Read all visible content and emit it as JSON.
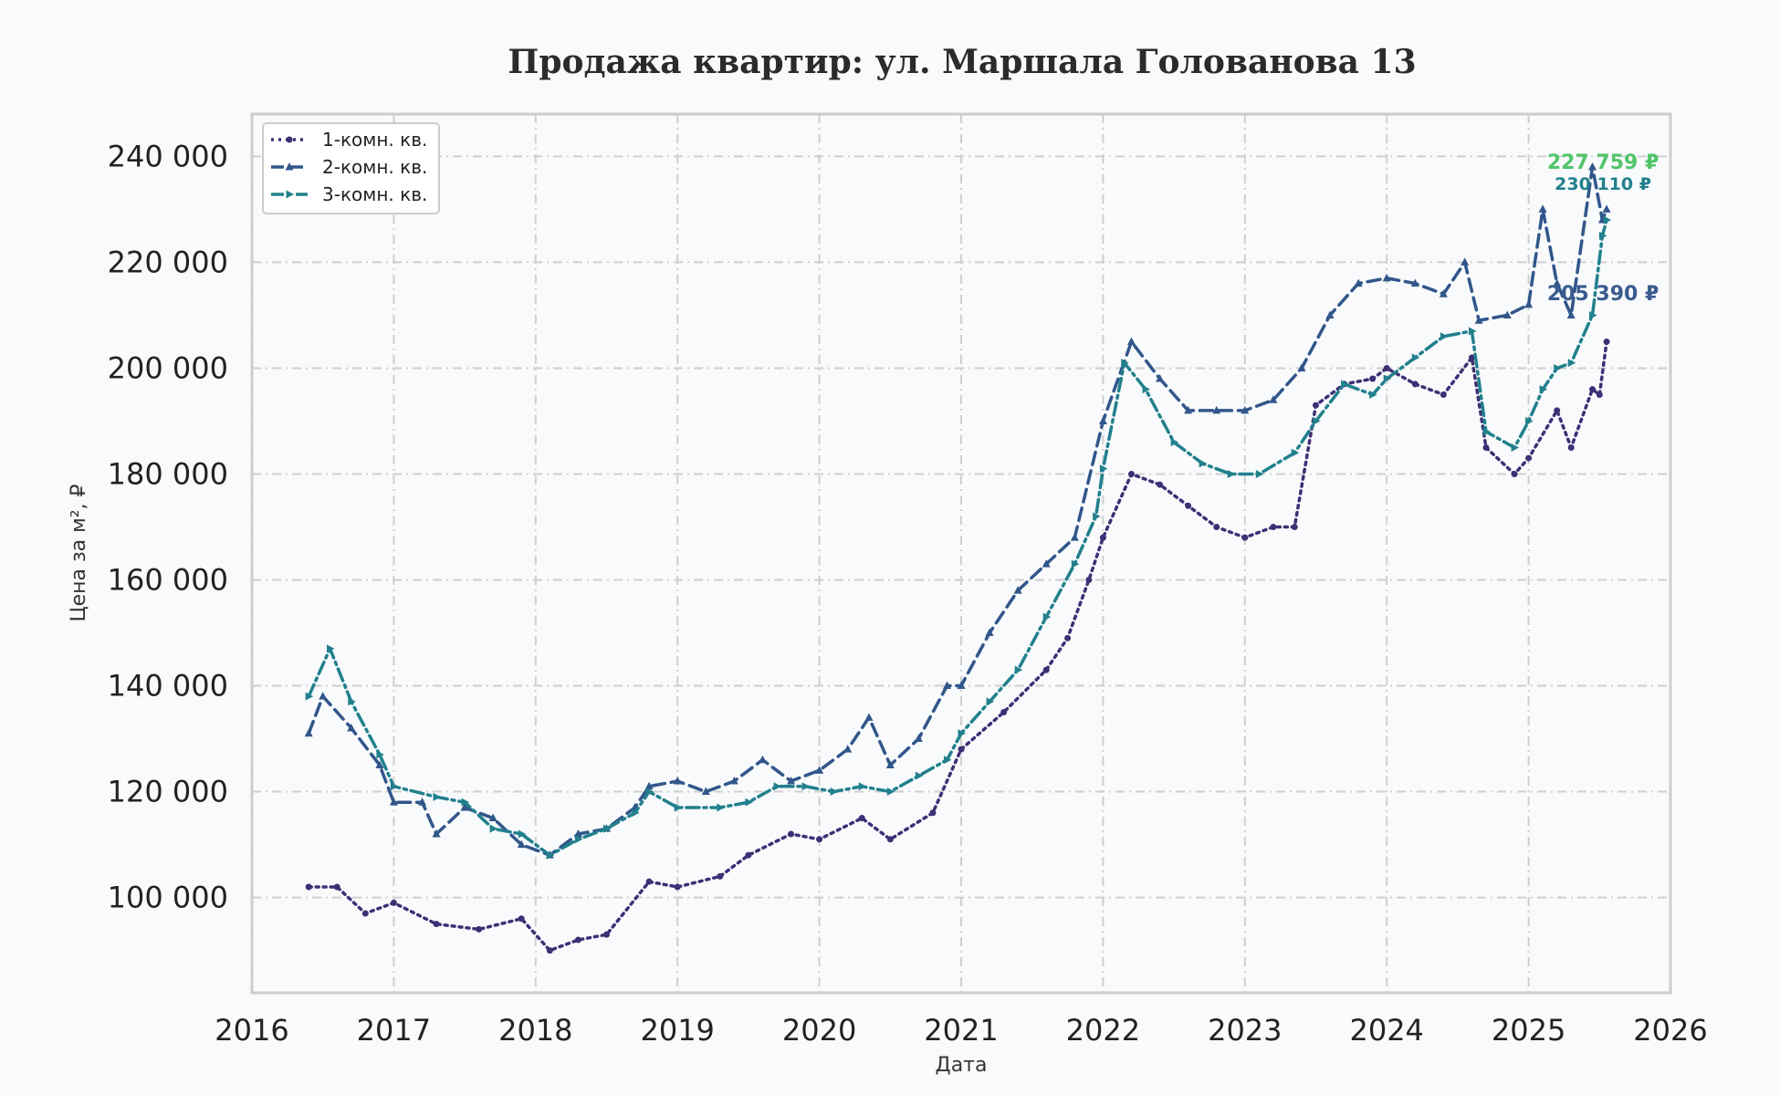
{
  "chart_data": {
    "type": "line",
    "title": "Продажа квартир: ул. Маршала Голованова 13",
    "xlabel": "Дата",
    "ylabel": "Цена за м², ₽",
    "xlim": [
      2016,
      2026
    ],
    "ylim": [
      82000,
      248000
    ],
    "x_ticks": [
      "2016",
      "2017",
      "2018",
      "2019",
      "2020",
      "2021",
      "2022",
      "2023",
      "2024",
      "2025",
      "2026"
    ],
    "y_ticks": [
      "100 000",
      "120 000",
      "140 000",
      "160 000",
      "180 000",
      "200 000",
      "220 000",
      "240 000"
    ],
    "grid": true,
    "legend_position": "top-left",
    "series": [
      {
        "name": "1-комн. кв.",
        "color": "#3e2f75",
        "marker": "circle",
        "dash": "dotted",
        "end_label": "205 390 ₽",
        "end_label_value": 212800,
        "x": [
          2016.4,
          2016.6,
          2016.8,
          2017.0,
          2017.3,
          2017.6,
          2017.9,
          2018.1,
          2018.3,
          2018.5,
          2018.8,
          2019.0,
          2019.3,
          2019.5,
          2019.8,
          2020.0,
          2020.3,
          2020.5,
          2020.8,
          2021.0,
          2021.3,
          2021.6,
          2021.75,
          2021.9,
          2022.0,
          2022.2,
          2022.4,
          2022.6,
          2022.8,
          2023.0,
          2023.2,
          2023.35,
          2023.5,
          2023.7,
          2023.9,
          2024.0,
          2024.2,
          2024.4,
          2024.6,
          2024.7,
          2024.9,
          2025.0,
          2025.2,
          2025.3,
          2025.45,
          2025.5,
          2025.55
        ],
        "y": [
          102000,
          102000,
          97000,
          99000,
          95000,
          94000,
          96000,
          90000,
          92000,
          93000,
          103000,
          102000,
          104000,
          108000,
          112000,
          111000,
          115000,
          111000,
          116000,
          128000,
          135000,
          143000,
          149000,
          160000,
          168000,
          180000,
          178000,
          174000,
          170000,
          168000,
          170000,
          170000,
          193000,
          197000,
          198000,
          200000,
          197000,
          195000,
          202000,
          185000,
          180000,
          183000,
          192000,
          185000,
          196000,
          195000,
          205000
        ]
      },
      {
        "name": "2-комн. кв.",
        "color": "#31568a",
        "marker": "triangle",
        "dash": "dashed",
        "end_label": "230 110 ₽",
        "end_label_value": 233700,
        "x": [
          2016.4,
          2016.5,
          2016.7,
          2016.9,
          2017.0,
          2017.2,
          2017.3,
          2017.5,
          2017.7,
          2017.9,
          2018.1,
          2018.3,
          2018.5,
          2018.7,
          2018.8,
          2019.0,
          2019.2,
          2019.4,
          2019.6,
          2019.8,
          2020.0,
          2020.2,
          2020.35,
          2020.5,
          2020.7,
          2020.9,
          2021.0,
          2021.2,
          2021.4,
          2021.6,
          2021.8,
          2022.0,
          2022.2,
          2022.4,
          2022.6,
          2022.8,
          2023.0,
          2023.2,
          2023.4,
          2023.6,
          2023.8,
          2024.0,
          2024.2,
          2024.4,
          2024.55,
          2024.65,
          2024.85,
          2025.0,
          2025.1,
          2025.2,
          2025.3,
          2025.45,
          2025.52,
          2025.55
        ],
        "y": [
          131000,
          138000,
          132000,
          125000,
          118000,
          118000,
          112000,
          117000,
          115000,
          110000,
          108000,
          112000,
          113000,
          117000,
          121000,
          122000,
          120000,
          122000,
          126000,
          122000,
          124000,
          128000,
          134000,
          125000,
          130000,
          140000,
          140000,
          150000,
          158000,
          163000,
          168000,
          190000,
          205000,
          198000,
          192000,
          192000,
          192000,
          194000,
          200000,
          210000,
          216000,
          217000,
          216000,
          214000,
          220000,
          209000,
          210000,
          212000,
          230000,
          216000,
          210000,
          238000,
          228000,
          230000
        ]
      },
      {
        "name": "3-комн. кв.",
        "color": "#21808c",
        "marker": "triangle-right",
        "dash": "dashdot",
        "end_label": "227 759 ₽",
        "end_label_value": 237700,
        "x": [
          2016.4,
          2016.55,
          2016.7,
          2016.9,
          2017.0,
          2017.3,
          2017.5,
          2017.7,
          2017.9,
          2018.1,
          2018.3,
          2018.5,
          2018.7,
          2018.8,
          2019.0,
          2019.3,
          2019.5,
          2019.7,
          2019.9,
          2020.1,
          2020.3,
          2020.5,
          2020.7,
          2020.9,
          2021.0,
          2021.2,
          2021.4,
          2021.6,
          2021.8,
          2021.95,
          2022.0,
          2022.15,
          2022.3,
          2022.5,
          2022.7,
          2022.9,
          2023.1,
          2023.35,
          2023.5,
          2023.7,
          2023.9,
          2024.0,
          2024.2,
          2024.4,
          2024.6,
          2024.7,
          2024.9,
          2025.0,
          2025.1,
          2025.2,
          2025.3,
          2025.45,
          2025.52,
          2025.55
        ],
        "y": [
          138000,
          147000,
          137000,
          127000,
          121000,
          119000,
          118000,
          113000,
          112000,
          108000,
          111000,
          113000,
          116000,
          120000,
          117000,
          117000,
          118000,
          121000,
          121000,
          120000,
          121000,
          120000,
          123000,
          126000,
          131000,
          137000,
          143000,
          153000,
          163000,
          172000,
          181000,
          201000,
          196000,
          186000,
          182000,
          180000,
          180000,
          184000,
          190000,
          197000,
          195000,
          198000,
          202000,
          206000,
          207000,
          188000,
          185000,
          190000,
          196000,
          200000,
          201000,
          210000,
          225000,
          228000
        ]
      }
    ]
  }
}
